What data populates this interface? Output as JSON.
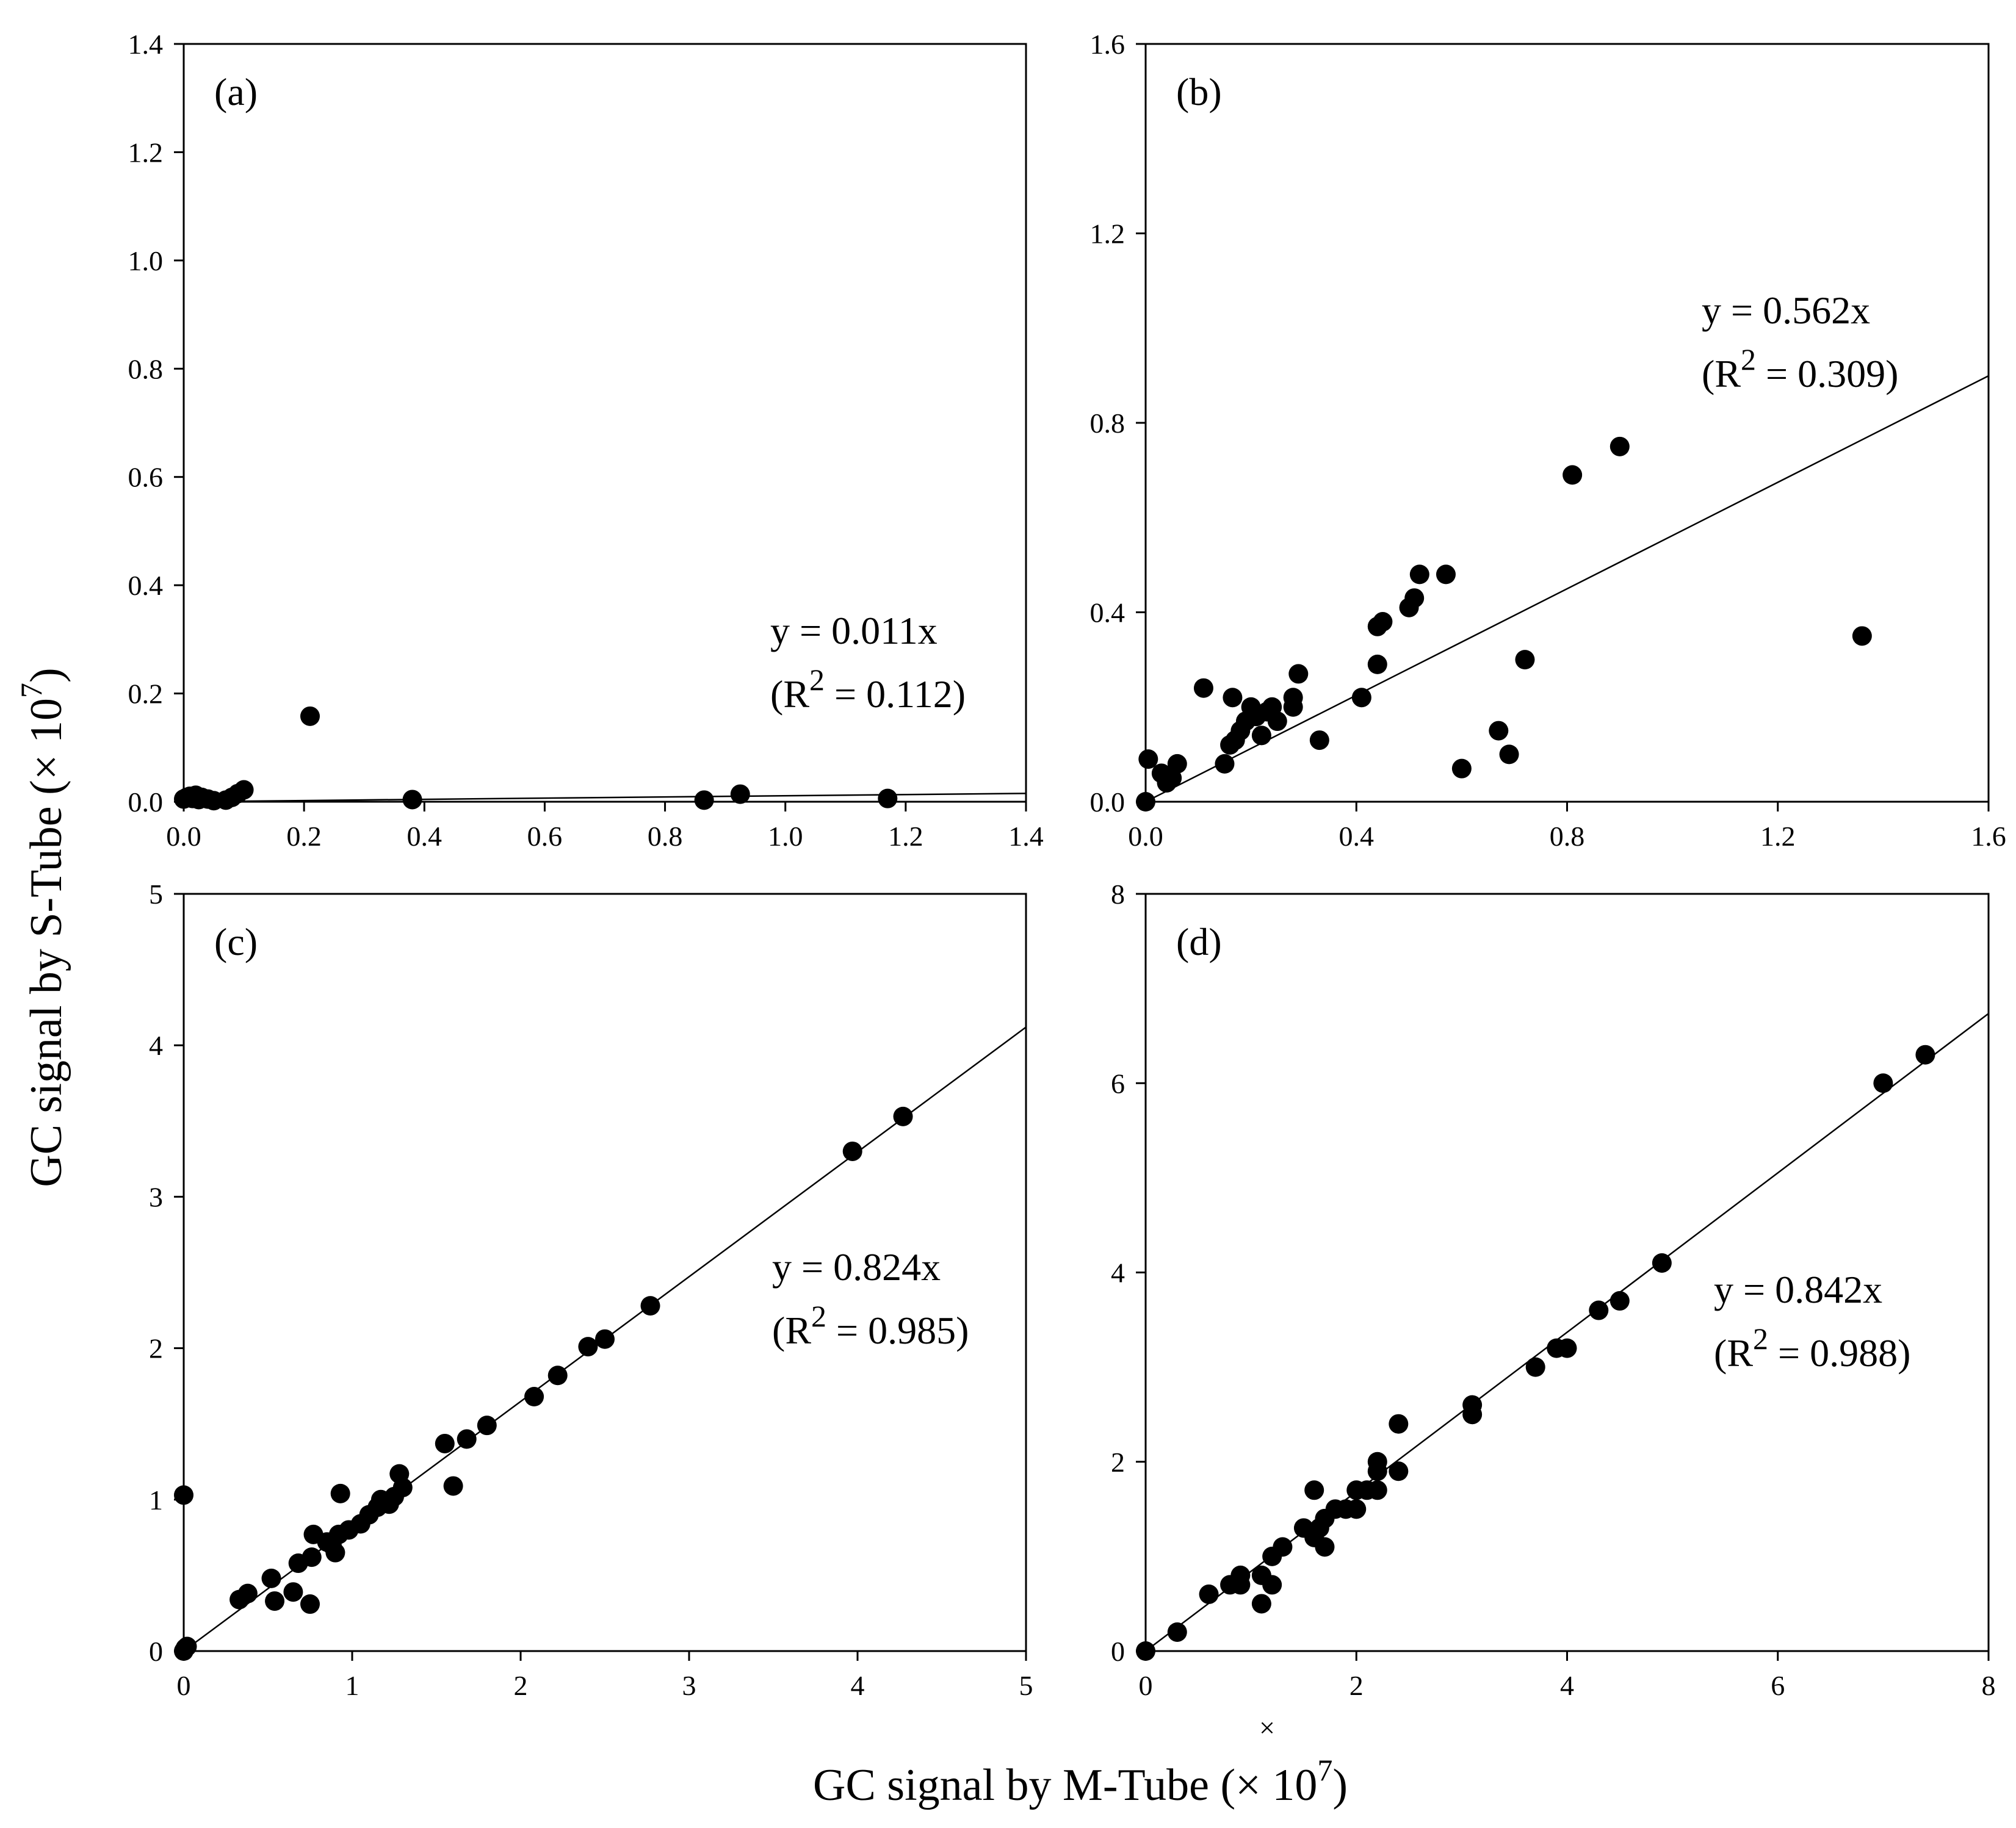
{
  "figure": {
    "xlabel": "GC signal by M-Tube (× 10",
    "xlabel_exp": "7",
    "xlabel_close": ")",
    "ylabel": "GC signal by S-Tube (× 10",
    "ylabel_exp": "7",
    "ylabel_close": ")",
    "stray_mark": "×"
  },
  "chart_data": [
    {
      "type": "scatter",
      "panel": "(a)",
      "equation": "y = 0.011x",
      "r2_prefix": "(R",
      "r2_exp": "2",
      "r2_value": " = 0.112)",
      "slope": 0.011,
      "xlim": [
        0,
        1.4
      ],
      "ylim": [
        0,
        1.4
      ],
      "xticks": [
        "0.0",
        "0.2",
        "0.4",
        "0.6",
        "0.8",
        "1.0",
        "1.2",
        "1.4"
      ],
      "yticks": [
        "0.0",
        "0.2",
        "0.4",
        "0.6",
        "0.8",
        "1.0",
        "1.2",
        "1.4"
      ],
      "points": [
        [
          0.0,
          0.005
        ],
        [
          0.005,
          0.008
        ],
        [
          0.01,
          0.01
        ],
        [
          0.015,
          0.006
        ],
        [
          0.02,
          0.012
        ],
        [
          0.025,
          0.004
        ],
        [
          0.03,
          0.008
        ],
        [
          0.04,
          0.005
        ],
        [
          0.05,
          0.002
        ],
        [
          0.07,
          0.003
        ],
        [
          0.08,
          0.008
        ],
        [
          0.09,
          0.015
        ],
        [
          0.1,
          0.022
        ],
        [
          0.21,
          0.158
        ],
        [
          0.38,
          0.004
        ],
        [
          0.865,
          0.003
        ],
        [
          0.925,
          0.014
        ],
        [
          1.17,
          0.006
        ]
      ]
    },
    {
      "type": "scatter",
      "panel": "(b)",
      "equation": "y = 0.562x",
      "r2_prefix": "(R",
      "r2_exp": "2",
      "r2_value": " = 0.309)",
      "slope": 0.562,
      "xlim": [
        0,
        1.6
      ],
      "ylim": [
        0,
        1.6
      ],
      "xticks": [
        "0.0",
        "0.4",
        "0.8",
        "1.2",
        "1.6"
      ],
      "yticks": [
        "0.0",
        "0.4",
        "0.8",
        "1.2",
        "1.6"
      ],
      "points": [
        [
          0.0,
          0.0
        ],
        [
          0.005,
          0.09
        ],
        [
          0.03,
          0.06
        ],
        [
          0.04,
          0.04
        ],
        [
          0.05,
          0.05
        ],
        [
          0.06,
          0.08
        ],
        [
          0.11,
          0.24
        ],
        [
          0.15,
          0.08
        ],
        [
          0.16,
          0.12
        ],
        [
          0.165,
          0.22
        ],
        [
          0.17,
          0.13
        ],
        [
          0.18,
          0.15
        ],
        [
          0.19,
          0.17
        ],
        [
          0.2,
          0.2
        ],
        [
          0.21,
          0.18
        ],
        [
          0.22,
          0.14
        ],
        [
          0.23,
          0.19
        ],
        [
          0.24,
          0.2
        ],
        [
          0.25,
          0.17
        ],
        [
          0.28,
          0.2
        ],
        [
          0.28,
          0.22
        ],
        [
          0.29,
          0.27
        ],
        [
          0.33,
          0.13
        ],
        [
          0.41,
          0.22
        ],
        [
          0.44,
          0.29
        ],
        [
          0.44,
          0.37
        ],
        [
          0.45,
          0.38
        ],
        [
          0.5,
          0.41
        ],
        [
          0.51,
          0.43
        ],
        [
          0.52,
          0.48
        ],
        [
          0.57,
          0.48
        ],
        [
          0.6,
          0.07
        ],
        [
          0.67,
          0.15
        ],
        [
          0.69,
          0.1
        ],
        [
          0.72,
          0.3
        ],
        [
          0.81,
          0.69
        ],
        [
          0.9,
          0.75
        ],
        [
          1.36,
          0.35
        ]
      ]
    },
    {
      "type": "scatter",
      "panel": "(c)",
      "equation": "y = 0.824x",
      "r2_prefix": "(R",
      "r2_exp": "2",
      "r2_value": " = 0.985)",
      "slope": 0.824,
      "xlim": [
        0,
        5
      ],
      "ylim": [
        0,
        5
      ],
      "xticks": [
        "0",
        "1",
        "2",
        "3",
        "4",
        "5"
      ],
      "yticks": [
        "0",
        "1",
        "2",
        "3",
        "4",
        "5"
      ],
      "points": [
        [
          0.0,
          0.0
        ],
        [
          0.01,
          0.02
        ],
        [
          0.02,
          0.03
        ],
        [
          0.0,
          1.03
        ],
        [
          0.33,
          0.34
        ],
        [
          0.38,
          0.38
        ],
        [
          0.52,
          0.48
        ],
        [
          0.54,
          0.33
        ],
        [
          0.65,
          0.39
        ],
        [
          0.68,
          0.58
        ],
        [
          0.75,
          0.31
        ],
        [
          0.76,
          0.62
        ],
        [
          0.77,
          0.77
        ],
        [
          0.85,
          0.72
        ],
        [
          0.88,
          0.7
        ],
        [
          0.9,
          0.65
        ],
        [
          0.92,
          0.77
        ],
        [
          0.93,
          1.04
        ],
        [
          0.98,
          0.8
        ],
        [
          1.05,
          0.84
        ],
        [
          1.1,
          0.9
        ],
        [
          1.15,
          0.95
        ],
        [
          1.17,
          1.0
        ],
        [
          1.22,
          0.97
        ],
        [
          1.25,
          1.02
        ],
        [
          1.28,
          1.17
        ],
        [
          1.3,
          1.08
        ],
        [
          1.55,
          1.37
        ],
        [
          1.6,
          1.09
        ],
        [
          1.68,
          1.4
        ],
        [
          1.8,
          1.49
        ],
        [
          2.08,
          1.68
        ],
        [
          2.22,
          1.82
        ],
        [
          2.4,
          2.01
        ],
        [
          2.5,
          2.06
        ],
        [
          2.77,
          2.28
        ],
        [
          3.97,
          3.3
        ],
        [
          4.27,
          3.53
        ]
      ]
    },
    {
      "type": "scatter",
      "panel": "(d)",
      "equation": "y = 0.842x",
      "r2_prefix": "(R",
      "r2_exp": "2",
      "r2_value": " = 0.988)",
      "slope": 0.842,
      "xlim": [
        0,
        8
      ],
      "ylim": [
        0,
        8
      ],
      "xticks": [
        "0",
        "2",
        "4",
        "6",
        "8"
      ],
      "yticks": [
        "0",
        "2",
        "4",
        "6",
        "8"
      ],
      "points": [
        [
          0.0,
          0.0
        ],
        [
          0.3,
          0.2
        ],
        [
          0.6,
          0.6
        ],
        [
          0.8,
          0.7
        ],
        [
          0.9,
          0.8
        ],
        [
          0.9,
          0.7
        ],
        [
          1.1,
          0.5
        ],
        [
          1.1,
          0.8
        ],
        [
          1.2,
          1.0
        ],
        [
          1.2,
          0.7
        ],
        [
          1.3,
          1.1
        ],
        [
          1.5,
          1.3
        ],
        [
          1.6,
          1.2
        ],
        [
          1.6,
          1.7
        ],
        [
          1.65,
          1.3
        ],
        [
          1.7,
          1.1
        ],
        [
          1.7,
          1.4
        ],
        [
          1.8,
          1.5
        ],
        [
          1.9,
          1.5
        ],
        [
          2.0,
          1.5
        ],
        [
          2.0,
          1.7
        ],
        [
          2.1,
          1.7
        ],
        [
          2.2,
          1.9
        ],
        [
          2.2,
          2.0
        ],
        [
          2.2,
          1.7
        ],
        [
          2.4,
          1.9
        ],
        [
          2.4,
          2.4
        ],
        [
          3.1,
          2.5
        ],
        [
          3.1,
          2.6
        ],
        [
          3.7,
          3.0
        ],
        [
          3.9,
          3.2
        ],
        [
          4.0,
          3.2
        ],
        [
          4.3,
          3.6
        ],
        [
          4.5,
          3.7
        ],
        [
          4.9,
          4.1
        ],
        [
          7.0,
          6.0
        ],
        [
          7.4,
          6.3
        ]
      ]
    }
  ]
}
